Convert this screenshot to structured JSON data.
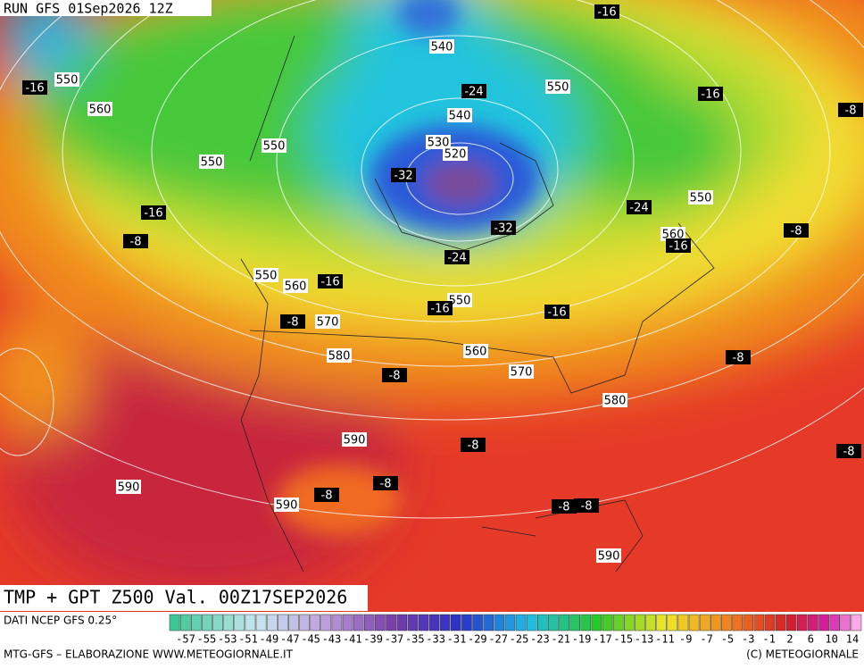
{
  "header": {
    "run": "RUN GFS 01Sep2026 12Z",
    "title": "TMP + GPT Z500 Val. 00Z17SEP2026"
  },
  "footer": {
    "source": "DATI NCEP GFS 0.25°",
    "credit": "MTG-GFS – ELABORAZIONE WWW.METEOGIORNALE.IT",
    "copyright": "(C) METEOGIORNALE"
  },
  "legend": {
    "labels": [
      -57,
      -55,
      -53,
      -51,
      -49,
      -47,
      -45,
      -43,
      -41,
      -39,
      -37,
      -35,
      -33,
      -31,
      -29,
      -27,
      -25,
      -23,
      -21,
      -19,
      -17,
      -15,
      -13,
      -11,
      -9,
      -7,
      -5,
      -3,
      -1,
      2,
      6,
      10,
      14
    ]
  },
  "map": {
    "height_labels": [
      540,
      550,
      560,
      550,
      550,
      540,
      530,
      520,
      550,
      550,
      560,
      550,
      560,
      570,
      550,
      580,
      560,
      570,
      580,
      590,
      590,
      590,
      590
    ],
    "temperature_labels": [
      -16,
      -16,
      -24,
      -16,
      -8,
      -32,
      -24,
      -16,
      -32,
      -16,
      -8,
      -8,
      -24,
      -16,
      -16,
      -16,
      -8,
      -8,
      -8,
      -8,
      -8,
      -8,
      -8,
      -8,
      -8
    ]
  }
}
